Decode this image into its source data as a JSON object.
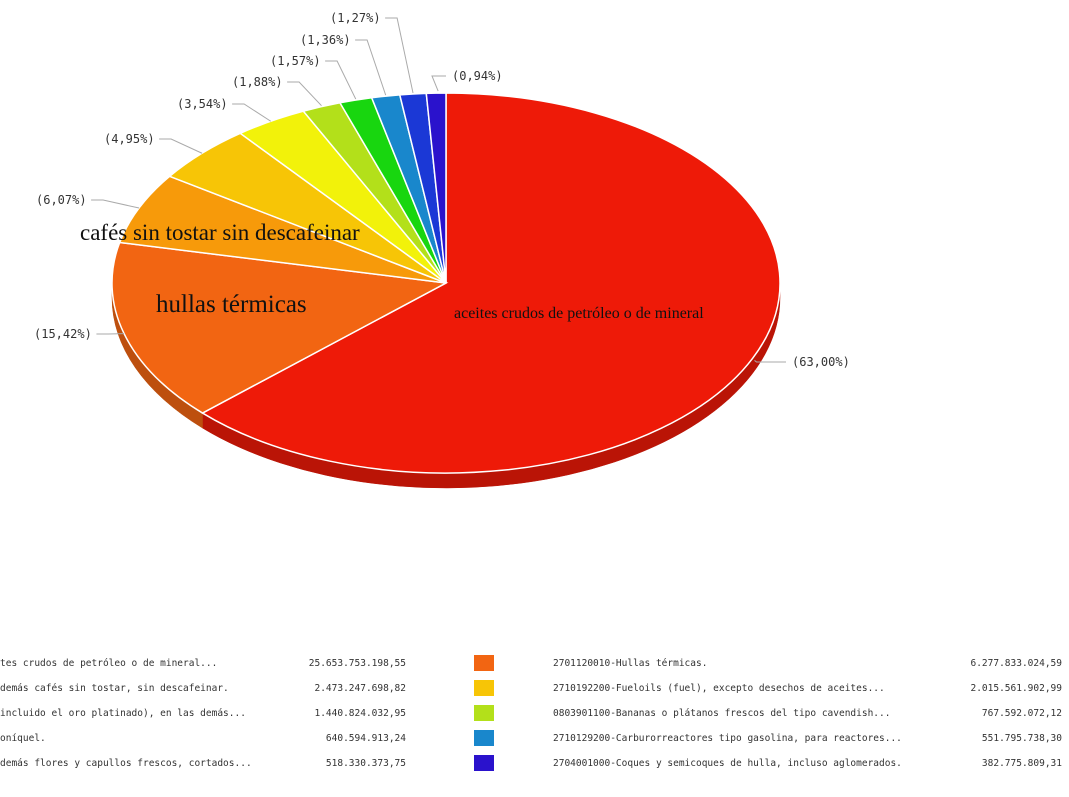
{
  "chart_data": {
    "type": "pie",
    "slices": [
      {
        "value": 63.0,
        "label": "(63,00%)",
        "color": "#ee1a08",
        "inside_label": "aceites crudos de petróleo o de mineral"
      },
      {
        "value": 15.42,
        "label": "(15,42%)",
        "color": "#f26512",
        "inside_label": "hullas térmicas"
      },
      {
        "value": 6.07,
        "label": "(6,07%)",
        "color": "#f79a0a",
        "inside_label": "cafés sin tostar sin descafeinar"
      },
      {
        "value": 4.95,
        "label": "(4,95%)",
        "color": "#f7c506",
        "inside_label": ""
      },
      {
        "value": 3.54,
        "label": "(3,54%)",
        "color": "#f2f20a",
        "inside_label": ""
      },
      {
        "value": 1.88,
        "label": "(1,88%)",
        "color": "#b3e01a",
        "inside_label": ""
      },
      {
        "value": 1.57,
        "label": "(1,57%)",
        "color": "#18d60f",
        "inside_label": ""
      },
      {
        "value": 1.36,
        "label": "(1,36%)",
        "color": "#1987cc",
        "inside_label": ""
      },
      {
        "value": 1.27,
        "label": "(1,27%)",
        "color": "#1b38d6",
        "inside_label": ""
      },
      {
        "value": 0.94,
        "label": "(0,94%)",
        "color": "#2a12cc",
        "inside_label": ""
      }
    ],
    "legend": [
      {
        "name": "tes crudos de petróleo o de mineral...",
        "value": "25.653.753.198,55"
      },
      {
        "name": "2701120010-Hullas térmicas.",
        "value": "6.277.833.024,59",
        "color": "#f26512"
      },
      {
        "name": "demás cafés sin tostar, sin descafeinar.",
        "value": "2.473.247.698,82"
      },
      {
        "name": "2710192200-Fueloils (fuel), excepto desechos de aceites...",
        "value": "2.015.561.902,99",
        "color": "#f7c506"
      },
      {
        "name": "incluido el oro platinado), en las demás...",
        "value": "1.440.824.032,95"
      },
      {
        "name": "0803901100-Bananas o plátanos frescos del tipo cavendish...",
        "value": "767.592.072,12",
        "color": "#b3e01a"
      },
      {
        "name": "oníquel.",
        "value": "640.594.913,24"
      },
      {
        "name": "2710129200-Carburorreactores tipo gasolina, para reactores...",
        "value": "551.795.738,30",
        "color": "#1987cc"
      },
      {
        "name": "demás flores y capullos frescos, cortados...",
        "value": "518.330.373,75"
      },
      {
        "name": "2704001000-Coques y semicoques de hulla, incluso aglomerados.",
        "value": "382.775.809,31",
        "color": "#2a12cc"
      }
    ]
  }
}
